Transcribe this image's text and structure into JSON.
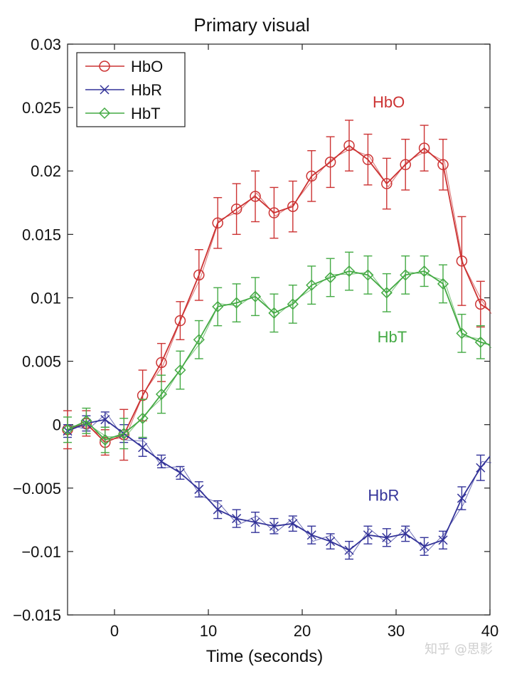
{
  "chart_data": {
    "type": "line",
    "title": "Primary visual",
    "xlabel": "Time (seconds)",
    "ylabel": "",
    "xlim": [
      -5,
      40
    ],
    "ylim": [
      -0.015,
      0.03
    ],
    "x_ticks": [
      0,
      10,
      20,
      30,
      40
    ],
    "y_ticks": [
      -0.015,
      -0.01,
      -0.005,
      0,
      0.005,
      0.01,
      0.015,
      0.02,
      0.025,
      0.03
    ],
    "x_tick_labels": [
      "0",
      "10",
      "20",
      "30",
      "40"
    ],
    "y_tick_labels": [
      "−0.015",
      "−0.01",
      "−0.005",
      "0",
      "0.005",
      "0.01",
      "0.015",
      "0.02",
      "0.025",
      "0.03"
    ],
    "legend_position": "top-left",
    "series": [
      {
        "name": "HbO",
        "color": "#cc3333",
        "marker": "circle",
        "annotation": "HbO",
        "annotation_at": [
          27.5,
          0.025
        ],
        "x": [
          -5,
          -3,
          -1,
          1,
          3,
          5,
          7,
          9,
          11,
          13,
          15,
          17,
          19,
          21,
          23,
          25,
          27,
          29,
          31,
          33,
          35,
          37,
          39,
          40
        ],
        "y": [
          -0.0004,
          0.0001,
          -0.0014,
          -0.0008,
          0.0023,
          0.0049,
          0.0082,
          0.0118,
          0.0159,
          0.017,
          0.018,
          0.0167,
          0.0172,
          0.0196,
          0.0207,
          0.022,
          0.0209,
          0.019,
          0.0205,
          0.0218,
          0.0205,
          0.0129,
          0.0095,
          0.009
        ],
        "err": [
          0.0015,
          0.001,
          0.001,
          0.002,
          0.002,
          0.0015,
          0.0015,
          0.002,
          0.002,
          0.002,
          0.002,
          0.002,
          0.002,
          0.002,
          0.002,
          0.002,
          0.002,
          0.002,
          0.002,
          0.0018,
          0.002,
          0.0035,
          0.0018,
          0
        ]
      },
      {
        "name": "HbR",
        "color": "#333399",
        "marker": "x",
        "annotation": "HbR",
        "annotation_at": [
          27,
          -0.006
        ],
        "x": [
          -5,
          -3,
          -1,
          1,
          3,
          5,
          7,
          9,
          11,
          13,
          15,
          17,
          19,
          21,
          23,
          25,
          27,
          29,
          31,
          33,
          35,
          37,
          39,
          40
        ],
        "y": [
          -0.0005,
          0.0001,
          0.0004,
          -0.0007,
          -0.0018,
          -0.0029,
          -0.0038,
          -0.0051,
          -0.0067,
          -0.0074,
          -0.0077,
          -0.008,
          -0.0078,
          -0.0087,
          -0.0092,
          -0.0099,
          -0.0087,
          -0.0089,
          -0.0086,
          -0.0096,
          -0.0091,
          -0.0058,
          -0.0034,
          -0.0025
        ],
        "err": [
          0.0005,
          0.0006,
          0.0006,
          0.0007,
          0.0007,
          0.0005,
          0.0005,
          0.0006,
          0.0007,
          0.0007,
          0.0008,
          0.0006,
          0.0006,
          0.0007,
          0.0006,
          0.0007,
          0.0007,
          0.0007,
          0.0006,
          0.0007,
          0.0007,
          0.0009,
          0.001,
          0
        ]
      },
      {
        "name": "HbT",
        "color": "#44aa44",
        "marker": "diamond",
        "annotation": "HbT",
        "annotation_at": [
          28,
          0.0065
        ],
        "x": [
          -5,
          -3,
          -1,
          1,
          3,
          5,
          7,
          9,
          11,
          13,
          15,
          17,
          19,
          21,
          23,
          25,
          27,
          29,
          31,
          33,
          35,
          37,
          39,
          40
        ],
        "y": [
          -0.0004,
          0.0003,
          -0.0012,
          -0.0007,
          0.0005,
          0.0024,
          0.0043,
          0.0067,
          0.0093,
          0.0096,
          0.0101,
          0.0088,
          0.0095,
          0.011,
          0.0116,
          0.0121,
          0.0118,
          0.0104,
          0.0118,
          0.0121,
          0.0111,
          0.0072,
          0.0065,
          0.0063
        ],
        "err": [
          0.001,
          0.001,
          0.001,
          0.0012,
          0.0015,
          0.0015,
          0.0015,
          0.0015,
          0.0015,
          0.0015,
          0.0015,
          0.0015,
          0.0015,
          0.0015,
          0.0015,
          0.0015,
          0.0015,
          0.0015,
          0.0015,
          0.0012,
          0.0015,
          0.0015,
          0.0013,
          0
        ]
      }
    ]
  },
  "watermark": "知乎 @思影"
}
